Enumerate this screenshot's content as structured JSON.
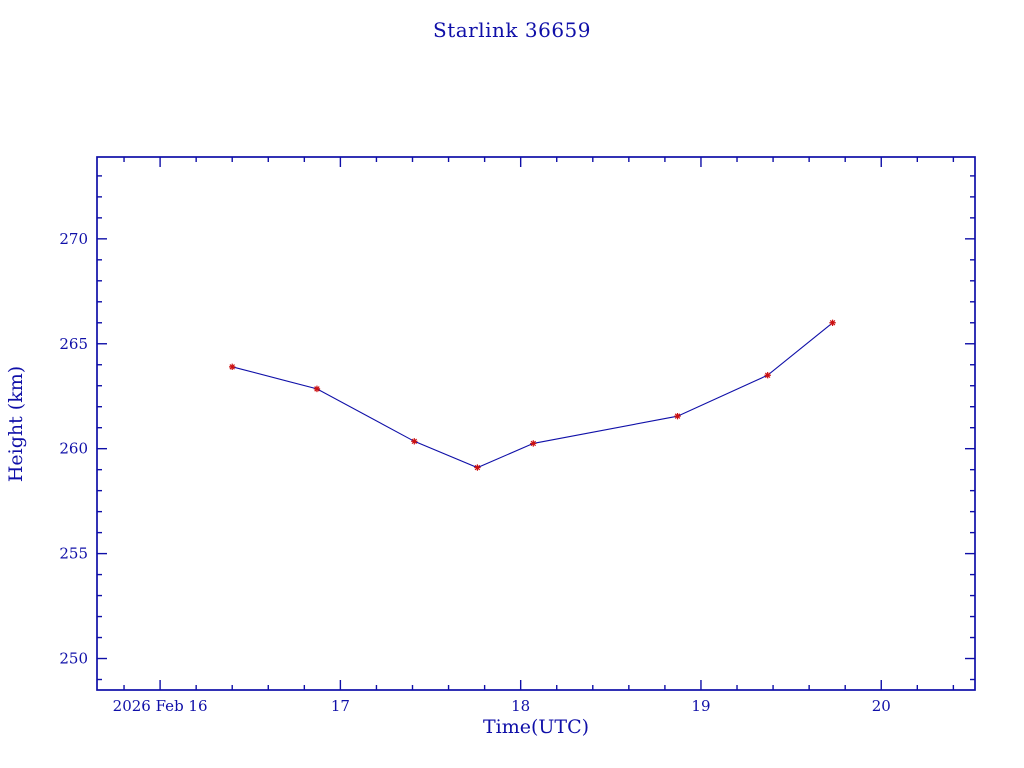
{
  "chart_data": {
    "type": "line",
    "title": "Starlink 36659",
    "xlabel": "Time(UTC)",
    "ylabel": "Height (km)",
    "x": [
      16.4,
      16.87,
      17.41,
      17.76,
      18.07,
      18.87,
      19.37,
      19.73
    ],
    "y": [
      263.9,
      262.85,
      260.35,
      259.1,
      260.25,
      261.55,
      263.5,
      266.0
    ],
    "xlim": [
      15.65,
      20.52
    ],
    "ylim": [
      248.5,
      273.9
    ],
    "xticks": [
      {
        "value": 16,
        "label": "2026 Feb 16"
      },
      {
        "value": 17,
        "label": "17"
      },
      {
        "value": 18,
        "label": "18"
      },
      {
        "value": 19,
        "label": "19"
      },
      {
        "value": 20,
        "label": "20"
      }
    ],
    "yticks": [
      {
        "value": 250,
        "label": "250"
      },
      {
        "value": 255,
        "label": "255"
      },
      {
        "value": 260,
        "label": "260"
      },
      {
        "value": 265,
        "label": "265"
      },
      {
        "value": 270,
        "label": "270"
      }
    ],
    "x_minor_step": 0.2,
    "y_minor_step": 1,
    "grid": "off",
    "legend": "none",
    "axis_color": "#0f0fa8",
    "line_color": "#0f0fa8",
    "marker_color": "#cc1111",
    "background_color": "#ffffff"
  }
}
